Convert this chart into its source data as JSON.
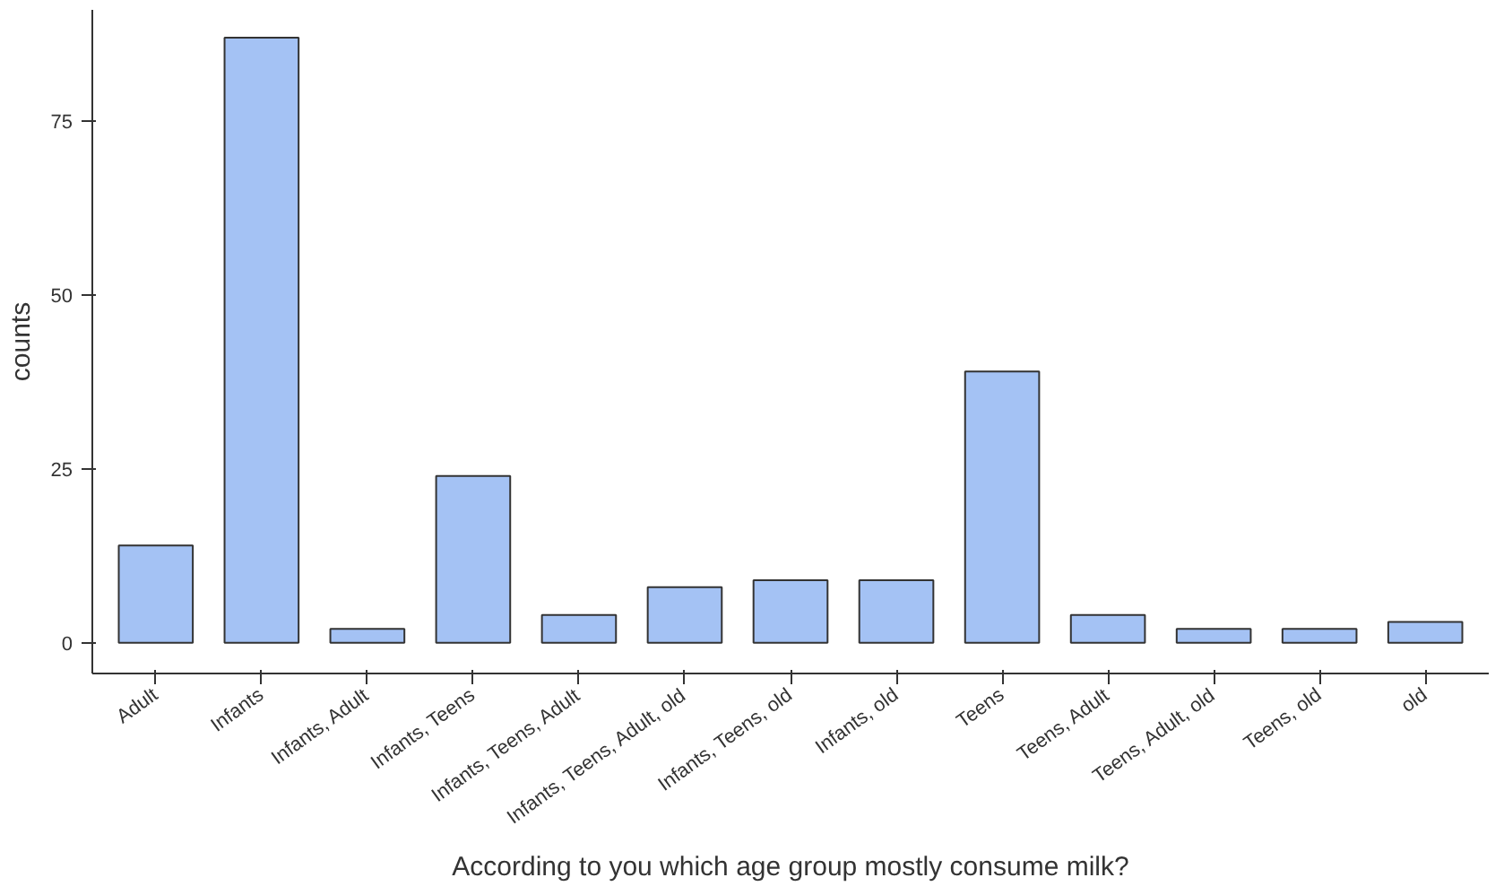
{
  "chart_data": {
    "type": "bar",
    "xlabel": "According to you which age group mostly consume milk?",
    "ylabel": "counts",
    "categories": [
      "Adult",
      "Infants",
      "Infants, Adult",
      "Infants, Teens",
      "Infants, Teens, Adult",
      "Infants, Teens, Adult, old",
      "Infants, Teens, old",
      "Infants, old",
      "Teens",
      "Teens, Adult",
      "Teens, Adult, old",
      "Teens, old",
      "old"
    ],
    "values": [
      14,
      87,
      2,
      24,
      4,
      8,
      9,
      9,
      39,
      4,
      2,
      2,
      3
    ],
    "color": "#a4c2f4",
    "ylim": [
      -4.4,
      91
    ],
    "yticks": [
      0,
      25,
      50,
      75
    ],
    "grid": false
  }
}
